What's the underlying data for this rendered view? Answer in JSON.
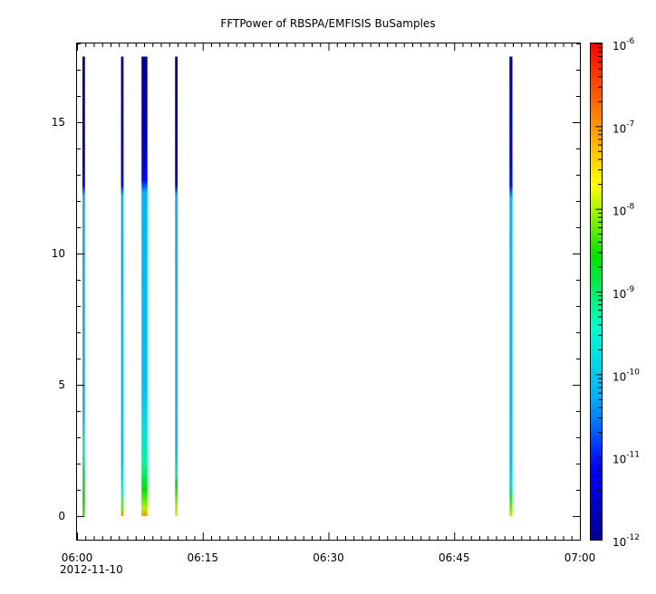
{
  "chart_data": {
    "type": "heatmap",
    "title": "FFTPower of RBSPA/EMFISIS  BuSamples",
    "xlabel": "",
    "ylabel": "",
    "x_ticks": [
      {
        "value": 0,
        "label": "06:00"
      },
      {
        "value": 15,
        "label": "06:15"
      },
      {
        "value": 30,
        "label": "06:30"
      },
      {
        "value": 45,
        "label": "06:45"
      },
      {
        "value": 60,
        "label": "07:00"
      }
    ],
    "x_date_label": "2012-11-10",
    "x_minor_step": 1,
    "xlim": [
      0,
      60
    ],
    "y_ticks": [
      0,
      5,
      10,
      15
    ],
    "ylim": [
      -0.9,
      18.0
    ],
    "y_minor_step": 1,
    "grid": false,
    "colorbar": {
      "scale": "log",
      "range": [
        -12,
        -6
      ],
      "tick_exponents": [
        -12,
        -11,
        -10,
        -9,
        -8,
        -7,
        -6
      ],
      "tick_base": "10",
      "colormap": [
        "#00008f",
        "#0000ff",
        "#00b0ff",
        "#00ffcc",
        "#00e000",
        "#ffff00",
        "#ff8000",
        "#ff0000"
      ]
    },
    "bursts": [
      {
        "x_start": 0.65,
        "x_end": 0.95,
        "y_max": 17.5,
        "profile": [
          [
            0,
            -8.3
          ],
          [
            0.5,
            -8.5
          ],
          [
            1.6,
            -8.9
          ],
          [
            2.5,
            -9.3
          ],
          [
            4.0,
            -10.1
          ],
          [
            12.2,
            -10.2
          ],
          [
            12.6,
            -11.2
          ],
          [
            13.5,
            -11.7
          ],
          [
            17.5,
            -12.2
          ]
        ]
      },
      {
        "x_start": 5.25,
        "x_end": 5.55,
        "y_max": 17.5,
        "profile": [
          [
            0,
            -7.0
          ],
          [
            0.3,
            -8.2
          ],
          [
            1.0,
            -9.5
          ],
          [
            2.0,
            -10.1
          ],
          [
            12.2,
            -10.2
          ],
          [
            12.6,
            -11.2
          ],
          [
            13.5,
            -11.7
          ],
          [
            17.5,
            -12.2
          ]
        ]
      },
      {
        "x_start": 7.7,
        "x_end": 8.4,
        "y_max": 17.5,
        "profile": [
          [
            0,
            -7.0
          ],
          [
            0.3,
            -8.0
          ],
          [
            1.0,
            -8.6
          ],
          [
            2.0,
            -9.2
          ],
          [
            3.5,
            -9.8
          ],
          [
            5.0,
            -10.1
          ],
          [
            12.3,
            -10.2
          ],
          [
            12.8,
            -11.1
          ],
          [
            13.8,
            -11.6
          ],
          [
            17.5,
            -12.2
          ]
        ]
      },
      {
        "x_start": 11.7,
        "x_end": 12.0,
        "y_max": 17.5,
        "profile": [
          [
            0,
            -7.5
          ],
          [
            0.5,
            -8.1
          ],
          [
            1.2,
            -8.6
          ],
          [
            1.6,
            -9.2
          ],
          [
            2.5,
            -10.1
          ],
          [
            12.2,
            -10.2
          ],
          [
            12.6,
            -11.2
          ],
          [
            13.5,
            -11.7
          ],
          [
            17.5,
            -12.2
          ]
        ]
      },
      {
        "x_start": 51.6,
        "x_end": 51.95,
        "y_max": 17.5,
        "profile": [
          [
            0,
            -7.4
          ],
          [
            0.3,
            -8.2
          ],
          [
            0.8,
            -8.9
          ],
          [
            1.2,
            -9.8
          ],
          [
            2.0,
            -10.1
          ],
          [
            12.1,
            -10.2
          ],
          [
            12.6,
            -11.1
          ],
          [
            13.5,
            -11.6
          ],
          [
            17.5,
            -12.2
          ]
        ]
      }
    ]
  }
}
